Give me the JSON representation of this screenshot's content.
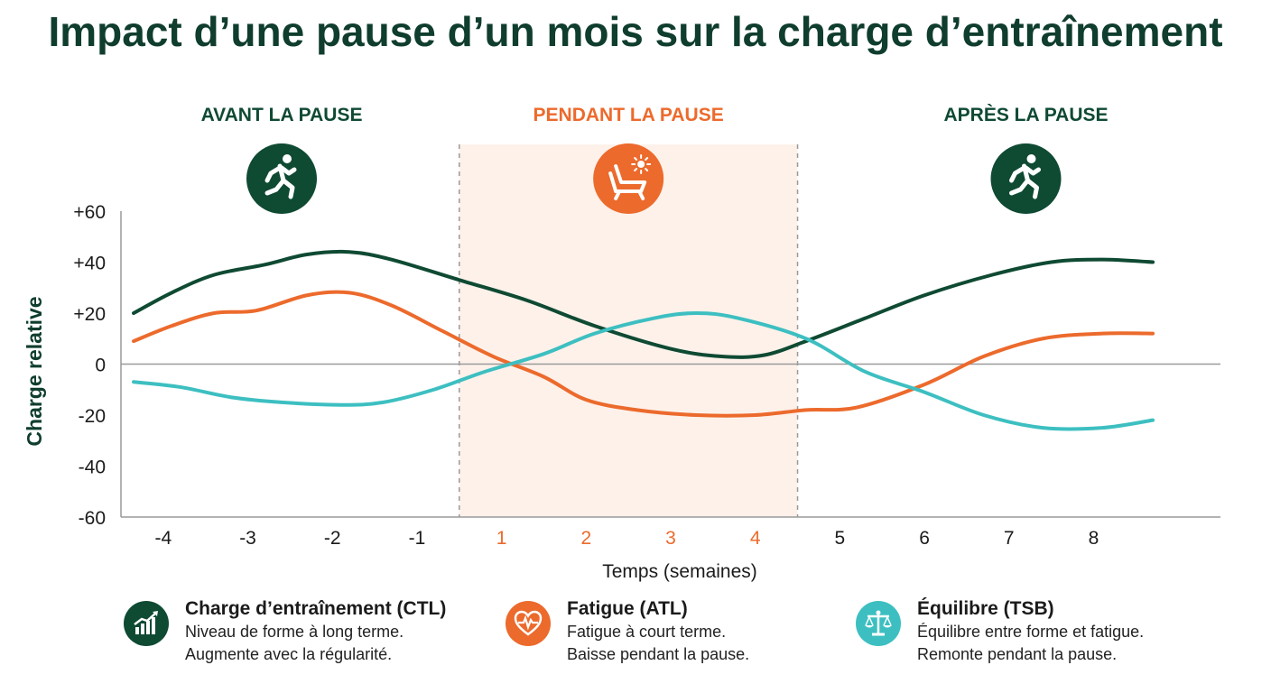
{
  "title": "Impact d’une pause d’un mois sur la charge d’entraînement",
  "colors": {
    "ctl": "#0f4a33",
    "atl": "#ec6a2c",
    "tsb": "#3dbfc1",
    "pause_bg": "#fdf1ea",
    "title": "#0f3d2e"
  },
  "phases": [
    {
      "label": "AVANT LA PAUSE",
      "icon": "runner-icon",
      "color": "#0f4a33"
    },
    {
      "label": "PENDANT LA PAUSE",
      "icon": "deckchair-sun-icon",
      "color": "#ec6a2c"
    },
    {
      "label": "APRÈS LA PAUSE",
      "icon": "runner-icon",
      "color": "#0f4a33"
    }
  ],
  "chart_data": {
    "type": "line",
    "xlabel": "Temps (semaines)",
    "ylabel": "Charge relative",
    "ylim": [
      -60,
      60
    ],
    "xlim": [
      -4.5,
      8.5
    ],
    "yticks": [
      60,
      40,
      20,
      0,
      -20,
      -40,
      -60
    ],
    "ytick_labels": [
      "+60",
      "+40",
      "+20",
      "0",
      "-20",
      "-40",
      "-60"
    ],
    "xticks": [
      -4,
      -3,
      -2,
      -1,
      1,
      2,
      3,
      4,
      5,
      6,
      7,
      8
    ],
    "xtick_labels": [
      "-4",
      "-3",
      "-2",
      "-1",
      "1",
      "2",
      "3",
      "4",
      "5",
      "6",
      "7",
      "8"
    ],
    "highlighted_xticks": [
      "1",
      "2",
      "3",
      "4"
    ],
    "pause_region": [
      -0.5,
      3.5
    ],
    "grid": false,
    "series": [
      {
        "name": "Charge d’entraînement (CTL)",
        "color": "#0f4a33",
        "points": [
          [
            -4.35,
            20
          ],
          [
            -3.9,
            28
          ],
          [
            -3.4,
            35
          ],
          [
            -2.8,
            39
          ],
          [
            -2.3,
            43
          ],
          [
            -1.8,
            44
          ],
          [
            -1.3,
            41
          ],
          [
            -0.5,
            33
          ],
          [
            0.3,
            25
          ],
          [
            1.1,
            15
          ],
          [
            2,
            6
          ],
          [
            2.6,
            3
          ],
          [
            3.1,
            3.5
          ],
          [
            3.6,
            9
          ],
          [
            4.3,
            18
          ],
          [
            5,
            27
          ],
          [
            5.8,
            35
          ],
          [
            6.5,
            40
          ],
          [
            7.1,
            41
          ],
          [
            7.7,
            40
          ]
        ]
      },
      {
        "name": "Fatigue (ATL)",
        "color": "#ec6a2c",
        "points": [
          [
            -4.35,
            9
          ],
          [
            -3.9,
            15
          ],
          [
            -3.4,
            20
          ],
          [
            -2.9,
            21
          ],
          [
            -2.3,
            27
          ],
          [
            -1.8,
            28
          ],
          [
            -1.3,
            23
          ],
          [
            -0.7,
            13
          ],
          [
            -0.1,
            3
          ],
          [
            0.5,
            -5
          ],
          [
            1,
            -14
          ],
          [
            1.6,
            -18
          ],
          [
            2.3,
            -20
          ],
          [
            3,
            -20
          ],
          [
            3.6,
            -18
          ],
          [
            4.2,
            -17
          ],
          [
            5,
            -8
          ],
          [
            5.7,
            3
          ],
          [
            6.4,
            10
          ],
          [
            7.1,
            12
          ],
          [
            7.7,
            12
          ]
        ]
      },
      {
        "name": "Équilibre (TSB)",
        "color": "#3dbfc1",
        "points": [
          [
            -4.35,
            -7
          ],
          [
            -3.8,
            -9
          ],
          [
            -3.2,
            -13
          ],
          [
            -2.6,
            -15
          ],
          [
            -1.9,
            -16
          ],
          [
            -1.4,
            -15
          ],
          [
            -0.8,
            -10
          ],
          [
            -0.2,
            -3
          ],
          [
            0.5,
            4
          ],
          [
            1.1,
            12
          ],
          [
            1.8,
            18
          ],
          [
            2.3,
            20
          ],
          [
            2.8,
            18
          ],
          [
            3.6,
            10
          ],
          [
            4.3,
            -3
          ],
          [
            5,
            -11
          ],
          [
            5.7,
            -20
          ],
          [
            6.4,
            -25
          ],
          [
            7.1,
            -25
          ],
          [
            7.7,
            -22
          ]
        ]
      }
    ]
  },
  "legend": [
    {
      "title": "Charge d’entraînement (CTL)",
      "lines": [
        "Niveau de forme à long terme.",
        "Augmente avec la régularité."
      ],
      "icon": "trend-chart-icon",
      "color": "#0f4a33"
    },
    {
      "title": "Fatigue (ATL)",
      "lines": [
        "Fatigue à court terme.",
        "Baisse pendant la pause."
      ],
      "icon": "heart-pulse-icon",
      "color": "#ec6a2c"
    },
    {
      "title": "Équilibre (TSB)",
      "lines": [
        "Équilibre entre forme et fatigue.",
        "Remonte pendant la pause."
      ],
      "icon": "balance-scale-icon",
      "color": "#3dbfc1"
    }
  ]
}
